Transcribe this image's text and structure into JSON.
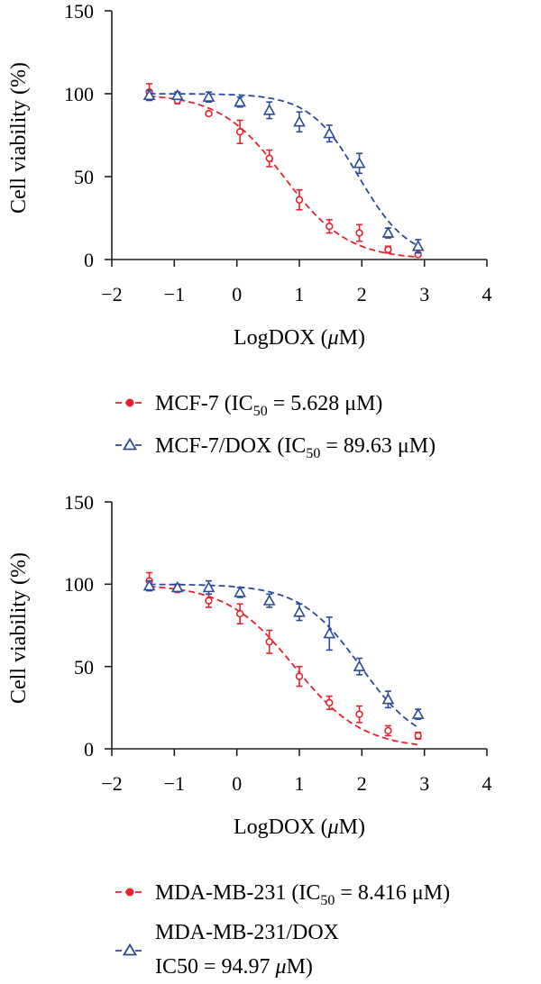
{
  "chart_data": [
    {
      "type": "scatter",
      "xlabel_main": "LogDOX (",
      "xlabel_mu": "μ",
      "xlabel_tail": "M)",
      "ylabel": "Cell viability (%)",
      "xlim": [
        -2,
        4
      ],
      "ylim": [
        0,
        150
      ],
      "xticks": [
        "−2",
        "−1",
        "0",
        "1",
        "2",
        "3",
        "4"
      ],
      "yticks": [
        "0",
        "50",
        "100",
        "150"
      ],
      "grid": false,
      "legend_position": "bottom",
      "series": [
        {
          "name_main": "MCF-7 (IC",
          "name_sub": "50",
          "name_tail": " = 5.628 μM)",
          "color": "#e8212b",
          "marker": "circle",
          "fit": {
            "top": 100,
            "bottom": 0,
            "ic50_log": 0.75,
            "hill": 0.85
          },
          "points": [
            {
              "x": -1.4,
              "y": 101,
              "err": 5
            },
            {
              "x": -0.95,
              "y": 96,
              "err": 2
            },
            {
              "x": -0.45,
              "y": 88,
              "err": 1
            },
            {
              "x": 0.05,
              "y": 77,
              "err": 7
            },
            {
              "x": 0.52,
              "y": 61,
              "err": 5
            },
            {
              "x": 1.0,
              "y": 36,
              "err": 6
            },
            {
              "x": 1.48,
              "y": 20,
              "err": 4
            },
            {
              "x": 1.96,
              "y": 16,
              "err": 5
            },
            {
              "x": 2.42,
              "y": 6,
              "err": 2
            },
            {
              "x": 2.9,
              "y": 3,
              "err": 1
            }
          ]
        },
        {
          "name_main": "MCF-7/DOX (IC",
          "name_sub": "50",
          "name_tail": " = 89.63 μM)",
          "color": "#2a4b9b",
          "marker": "triangle",
          "fit": {
            "top": 100,
            "bottom": 0,
            "ic50_log": 1.95,
            "hill": 1.1
          },
          "points": [
            {
              "x": -1.4,
              "y": 99,
              "err": 3
            },
            {
              "x": -0.95,
              "y": 99,
              "err": 2
            },
            {
              "x": -0.45,
              "y": 98,
              "err": 3
            },
            {
              "x": 0.05,
              "y": 95,
              "err": 3
            },
            {
              "x": 0.52,
              "y": 90,
              "err": 5
            },
            {
              "x": 1.0,
              "y": 83,
              "err": 6
            },
            {
              "x": 1.48,
              "y": 76,
              "err": 5
            },
            {
              "x": 1.96,
              "y": 58,
              "err": 6
            },
            {
              "x": 2.42,
              "y": 16,
              "err": 3
            },
            {
              "x": 2.9,
              "y": 8,
              "err": 4
            }
          ]
        }
      ]
    },
    {
      "type": "scatter",
      "xlabel_main": "LogDOX (",
      "xlabel_mu": "μ",
      "xlabel_tail": "M)",
      "ylabel": "Cell viability (%)",
      "xlim": [
        -2,
        4
      ],
      "ylim": [
        0,
        150
      ],
      "xticks": [
        "−2",
        "−1",
        "0",
        "1",
        "2",
        "3",
        "4"
      ],
      "yticks": [
        "0",
        "50",
        "100",
        "150"
      ],
      "grid": false,
      "legend_position": "bottom",
      "series": [
        {
          "name_main": "MDA-MB-231 (IC",
          "name_sub": "50",
          "name_tail": " = 8.416 μM)",
          "color": "#e8212b",
          "marker": "circle",
          "fit": {
            "top": 100,
            "bottom": 0,
            "ic50_log": 0.92,
            "hill": 0.8
          },
          "points": [
            {
              "x": -1.4,
              "y": 102,
              "err": 5
            },
            {
              "x": -0.95,
              "y": 97,
              "err": 2
            },
            {
              "x": -0.45,
              "y": 90,
              "err": 4
            },
            {
              "x": 0.05,
              "y": 82,
              "err": 6
            },
            {
              "x": 0.52,
              "y": 65,
              "err": 7
            },
            {
              "x": 1.0,
              "y": 44,
              "err": 6
            },
            {
              "x": 1.48,
              "y": 28,
              "err": 4
            },
            {
              "x": 1.96,
              "y": 21,
              "err": 5
            },
            {
              "x": 2.42,
              "y": 11,
              "err": 3
            },
            {
              "x": 2.9,
              "y": 8,
              "err": 2
            }
          ]
        },
        {
          "name_line1": "MDA-MB-231/DOX",
          "name_line2_main": "IC50 = 94.97 ",
          "name_line2_mu": "μ",
          "name_line2_tail": "M)",
          "color": "#2a4b9b",
          "marker": "triangle",
          "fit": {
            "top": 100,
            "bottom": 0,
            "ic50_log": 1.98,
            "hill": 0.9
          },
          "points": [
            {
              "x": -1.4,
              "y": 99,
              "err": 3
            },
            {
              "x": -0.95,
              "y": 98,
              "err": 2
            },
            {
              "x": -0.45,
              "y": 98,
              "err": 4
            },
            {
              "x": 0.05,
              "y": 95,
              "err": 3
            },
            {
              "x": 0.52,
              "y": 90,
              "err": 4
            },
            {
              "x": 1.0,
              "y": 83,
              "err": 5
            },
            {
              "x": 1.48,
              "y": 70,
              "err": 10
            },
            {
              "x": 1.96,
              "y": 50,
              "err": 5
            },
            {
              "x": 2.42,
              "y": 30,
              "err": 5
            },
            {
              "x": 2.9,
              "y": 21,
              "err": 3
            }
          ]
        }
      ]
    }
  ]
}
